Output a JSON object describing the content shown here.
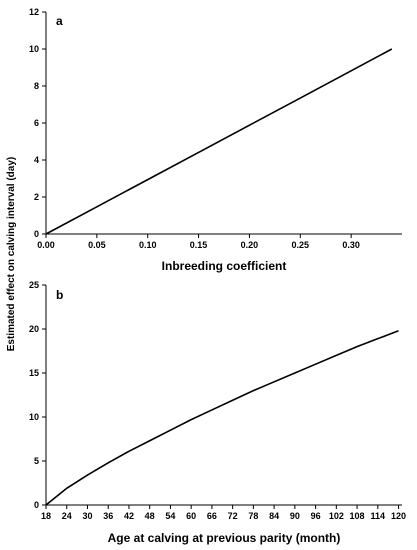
{
  "chart_data": [
    {
      "panel": "a",
      "type": "line",
      "xlabel": "Inbreeding coefficient",
      "xlim": [
        0,
        0.35
      ],
      "ylim": [
        0,
        12
      ],
      "xticks": [
        "0.00",
        "0.05",
        "0.10",
        "0.15",
        "0.20",
        "0.25",
        "0.30"
      ],
      "yticks": [
        "0",
        "2",
        "4",
        "6",
        "8",
        "10",
        "12"
      ],
      "series": [
        {
          "x": [
            0.0,
            0.05,
            0.1,
            0.15,
            0.2,
            0.25,
            0.3,
            0.34
          ],
          "y": [
            0.0,
            1.47,
            2.94,
            4.41,
            5.88,
            7.35,
            8.82,
            10.0
          ]
        }
      ],
      "grid": false
    },
    {
      "panel": "b",
      "type": "line",
      "xlabel": "Age at calving at previous parity (month)",
      "xlim": [
        18,
        121
      ],
      "ylim": [
        0,
        25
      ],
      "xticks": [
        "18",
        "24",
        "30",
        "36",
        "42",
        "48",
        "54",
        "60",
        "66",
        "72",
        "78",
        "84",
        "90",
        "96",
        "102",
        "108",
        "114",
        "120"
      ],
      "yticks": [
        "0",
        "5",
        "10",
        "15",
        "20",
        "25"
      ],
      "series": [
        {
          "x": [
            18,
            24,
            30,
            36,
            42,
            48,
            54,
            60,
            66,
            72,
            78,
            84,
            90,
            96,
            102,
            108,
            114,
            120
          ],
          "y": [
            0.0,
            1.9,
            3.4,
            4.8,
            6.1,
            7.3,
            8.5,
            9.7,
            10.8,
            11.9,
            13.0,
            14.0,
            15.0,
            16.0,
            17.0,
            18.0,
            18.9,
            19.8
          ]
        }
      ],
      "grid": false
    }
  ],
  "shared_ylabel": "Estimated effect on calving interval (day)"
}
